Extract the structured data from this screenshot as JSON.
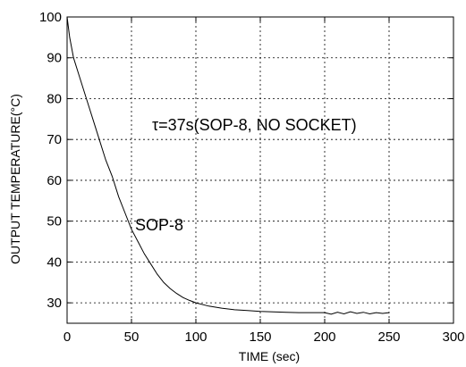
{
  "chart_data": {
    "type": "line",
    "title": "",
    "xlabel": "TIME (sec)",
    "ylabel": "OUTPUT TEMPERATURE(°C)",
    "xlim": [
      0,
      300
    ],
    "ylim": [
      25,
      100
    ],
    "xticks": [
      0,
      50,
      100,
      150,
      200,
      250,
      300
    ],
    "yticks": [
      30,
      40,
      50,
      60,
      70,
      80,
      90,
      100
    ],
    "grid": true,
    "series": [
      {
        "name": "SOP-8",
        "x": [
          0,
          2,
          5,
          10,
          15,
          20,
          25,
          30,
          35,
          40,
          45,
          50,
          55,
          60,
          65,
          70,
          75,
          80,
          85,
          90,
          95,
          100,
          110,
          120,
          130,
          140,
          150,
          160,
          170,
          180,
          190,
          200,
          205,
          210,
          215,
          220,
          225,
          230,
          235,
          240,
          245,
          250
        ],
        "y": [
          100,
          95,
          90,
          85,
          80,
          75,
          70,
          65,
          61,
          56,
          52,
          48,
          45,
          42,
          39.5,
          37,
          35,
          33.5,
          32.3,
          31.3,
          30.6,
          30,
          29.2,
          28.7,
          28.3,
          28.1,
          27.9,
          27.8,
          27.7,
          27.6,
          27.6,
          27.6,
          27.2,
          27.7,
          27.3,
          27.8,
          27.4,
          27.7,
          27.3,
          27.6,
          27.4,
          27.6
        ]
      }
    ],
    "annotations": {
      "tau_label": "τ=37s(SOP-8, NO SOCKET)",
      "curve_label": "SOP-8"
    },
    "colors": {
      "line": "#000000",
      "background": "#ffffff"
    }
  }
}
